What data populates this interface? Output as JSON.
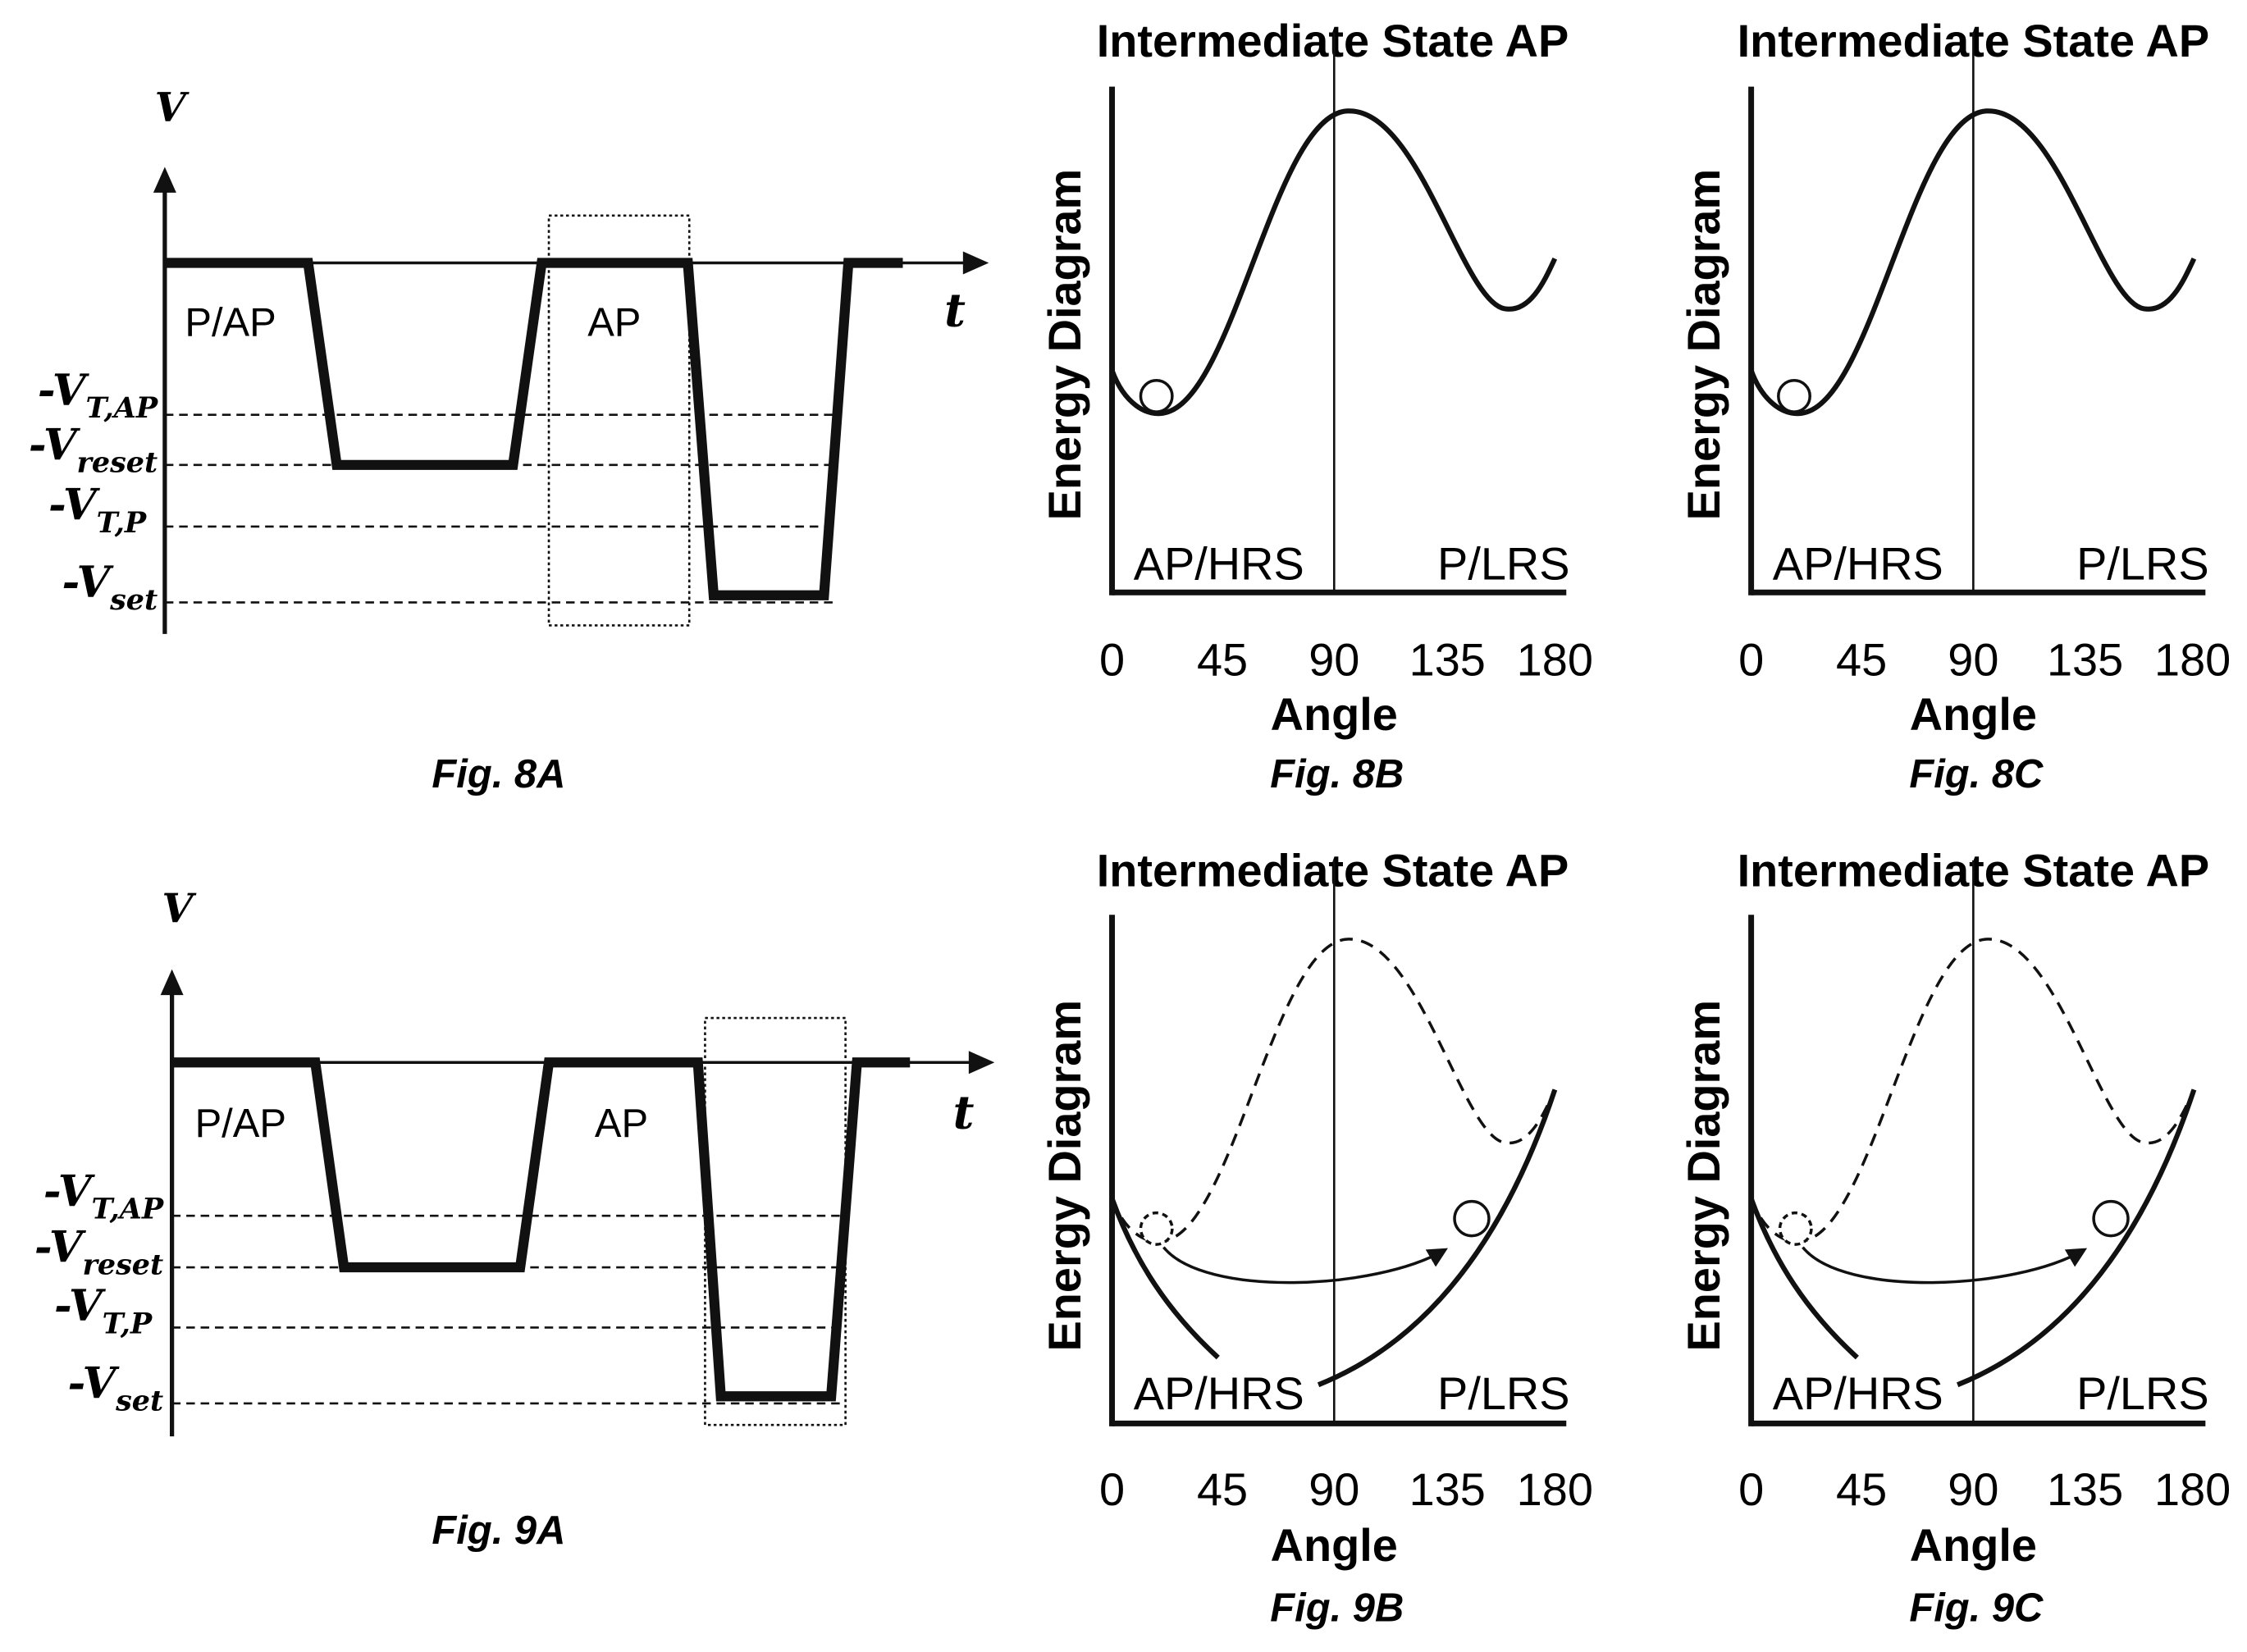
{
  "fig8a": {
    "caption": "Fig. 8A",
    "v_axis": "V",
    "t_axis": "t",
    "region_left": "P/AP",
    "region_right": "AP",
    "levels": [
      {
        "lead": "-V",
        "sub": "T,AP"
      },
      {
        "lead": "-V",
        "sub": "reset"
      },
      {
        "lead": "-V",
        "sub": "T,P"
      },
      {
        "lead": "-V",
        "sub": "set"
      }
    ]
  },
  "fig9a": {
    "caption": "Fig. 9A",
    "v_axis": "V",
    "t_axis": "t",
    "region_left": "P/AP",
    "region_right": "AP",
    "levels": [
      {
        "lead": "-V",
        "sub": "T,AP"
      },
      {
        "lead": "-V",
        "sub": "reset"
      },
      {
        "lead": "-V",
        "sub": "T,P"
      },
      {
        "lead": "-V",
        "sub": "set"
      }
    ]
  },
  "fig8b": {
    "caption": "Fig. 8B",
    "title": "Intermediate State AP",
    "ylabel": "Energy Diagram",
    "xlabel": "Angle",
    "left_state": "AP/HRS",
    "right_state": "P/LRS",
    "ticks": [
      "0",
      "45",
      "90",
      "135",
      "180"
    ]
  },
  "fig8c": {
    "caption": "Fig. 8C",
    "title": "Intermediate State AP",
    "ylabel": "Energy Diagram",
    "xlabel": "Angle",
    "left_state": "AP/HRS",
    "right_state": "P/LRS",
    "ticks": [
      "0",
      "45",
      "90",
      "135",
      "180"
    ]
  },
  "fig9b": {
    "caption": "Fig. 9B",
    "title": "Intermediate State AP",
    "ylabel": "Energy Diagram",
    "xlabel": "Angle",
    "left_state": "AP/HRS",
    "right_state": "P/LRS",
    "ticks": [
      "0",
      "45",
      "90",
      "135",
      "180"
    ]
  },
  "fig9c": {
    "caption": "Fig. 9C",
    "title": "Intermediate State AP",
    "ylabel": "Energy Diagram",
    "xlabel": "Angle",
    "left_state": "AP/HRS",
    "right_state": "P/LRS",
    "ticks": [
      "0",
      "45",
      "90",
      "135",
      "180"
    ]
  }
}
